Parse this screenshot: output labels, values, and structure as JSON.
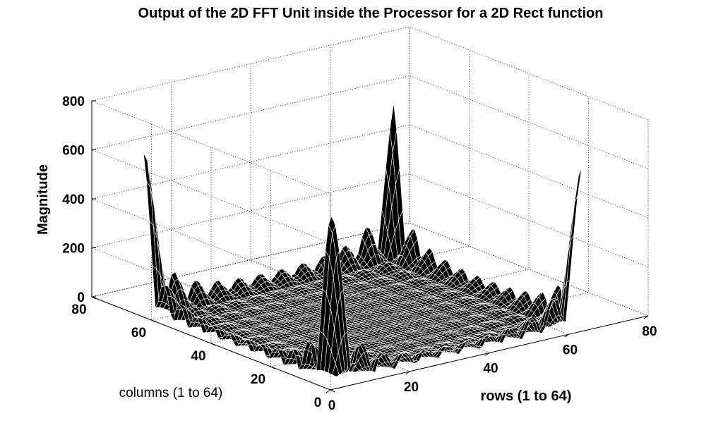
{
  "chart_data": {
    "type": "surface",
    "title": "Output of the 2D FFT Unit inside the Processor for a 2D Rect function",
    "xlabel": "rows (1 to 64)",
    "ylabel": "columns (1 to 64)",
    "zlabel": "Magnitude",
    "xlim": [
      0,
      80
    ],
    "ylim": [
      0,
      80
    ],
    "zlim": [
      0,
      800
    ],
    "x_ticks": [
      "0",
      "20",
      "40",
      "60",
      "80"
    ],
    "y_ticks": [
      "0",
      "20",
      "40",
      "60",
      "80"
    ],
    "z_ticks": [
      "0",
      "200",
      "400",
      "600",
      "800"
    ],
    "grid": true,
    "grid_size": [
      64,
      64
    ],
    "peak_magnitude": 700,
    "peak_locations": [
      [
        1,
        1
      ],
      [
        1,
        64
      ],
      [
        64,
        1
      ],
      [
        64,
        64
      ]
    ],
    "sidelobe_magnitude": 270,
    "colors": {
      "surface_face": "#000000",
      "surface_edge": "#ffffff",
      "axes": "#000000"
    }
  }
}
